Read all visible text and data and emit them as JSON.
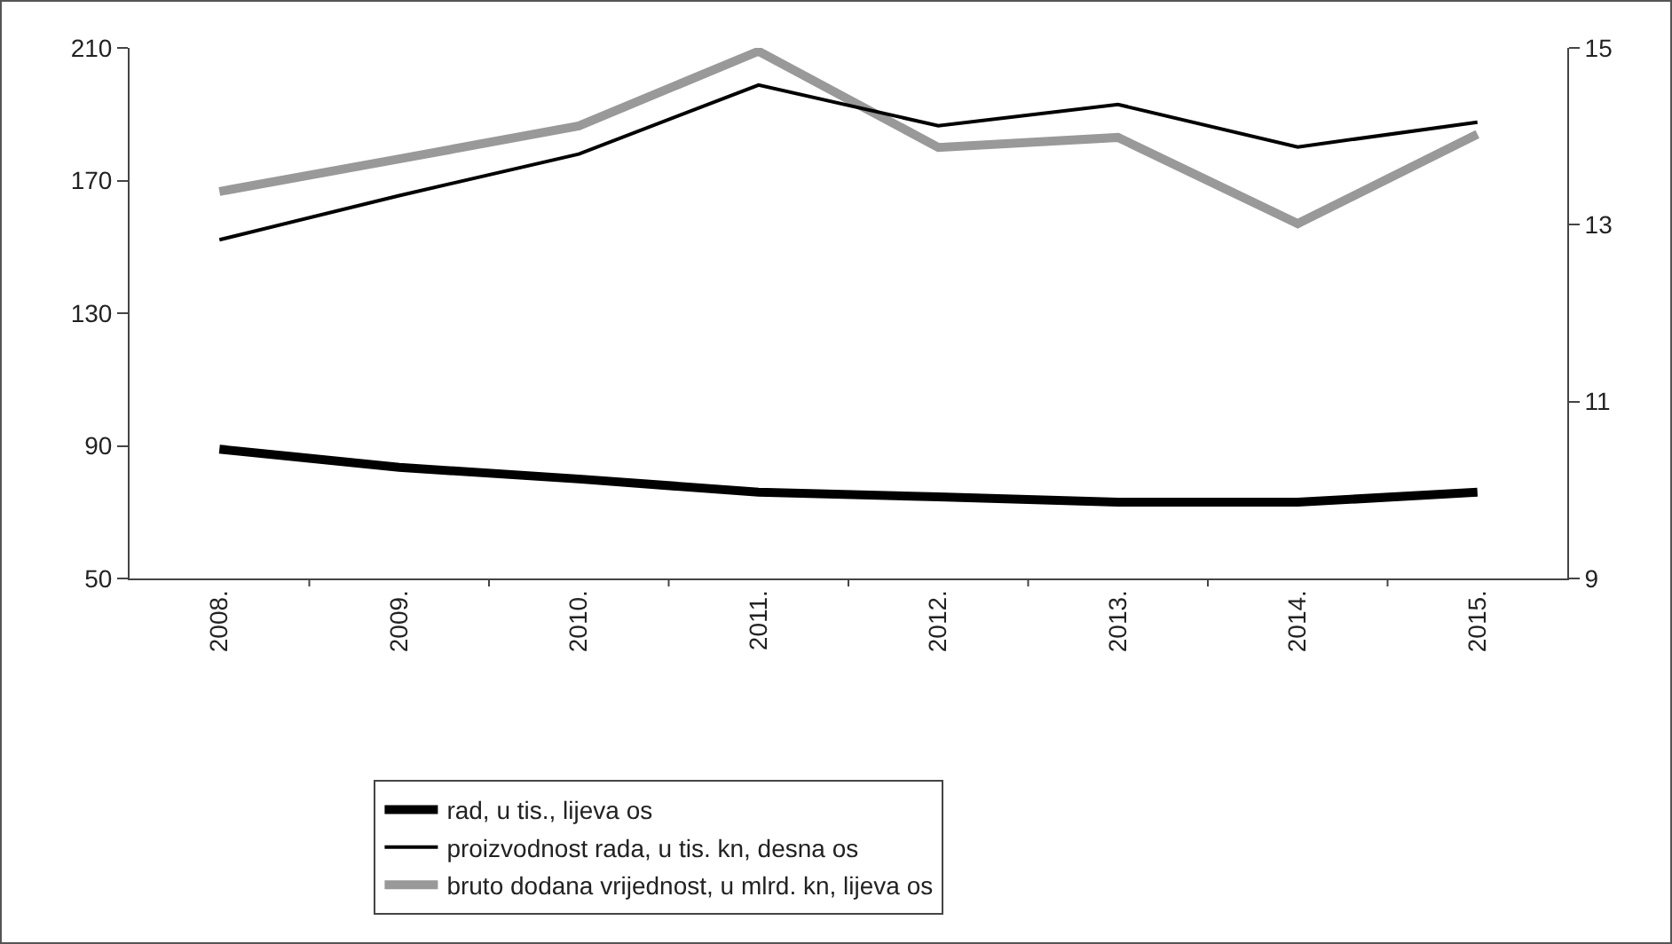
{
  "chart_data": {
    "type": "line",
    "categories": [
      "2008.",
      "2009.",
      "2010.",
      "2011.",
      "2012.",
      "2013.",
      "2014.",
      "2015."
    ],
    "series": [
      {
        "name": "rad, u tis., lijeva os",
        "color": "#000000",
        "values": [
          89,
          83.5,
          80,
          76,
          74.6,
          73,
          73,
          76
        ]
      },
      {
        "name": "proizvodnost rada, u tis. kn, desna os",
        "color": "#000000",
        "axis": "y2",
        "values": [
          12.83,
          13.33,
          13.8,
          14.58,
          14.12,
          14.36,
          13.88,
          14.16
        ]
      },
      {
        "name": "bruto dodana vrijednost, u mlrd. kn, lijeva os",
        "color": "#999999",
        "values": [
          166.7,
          176.5,
          186.5,
          209,
          180,
          183,
          157,
          184
        ]
      }
    ],
    "ylim": [
      50,
      210
    ],
    "yticks": [
      50,
      90,
      130,
      170,
      210
    ],
    "y2lim": [
      9,
      15
    ],
    "y2ticks": [
      9,
      11,
      13,
      15
    ],
    "grid": false,
    "legend": "bottom",
    "marker": "none"
  }
}
